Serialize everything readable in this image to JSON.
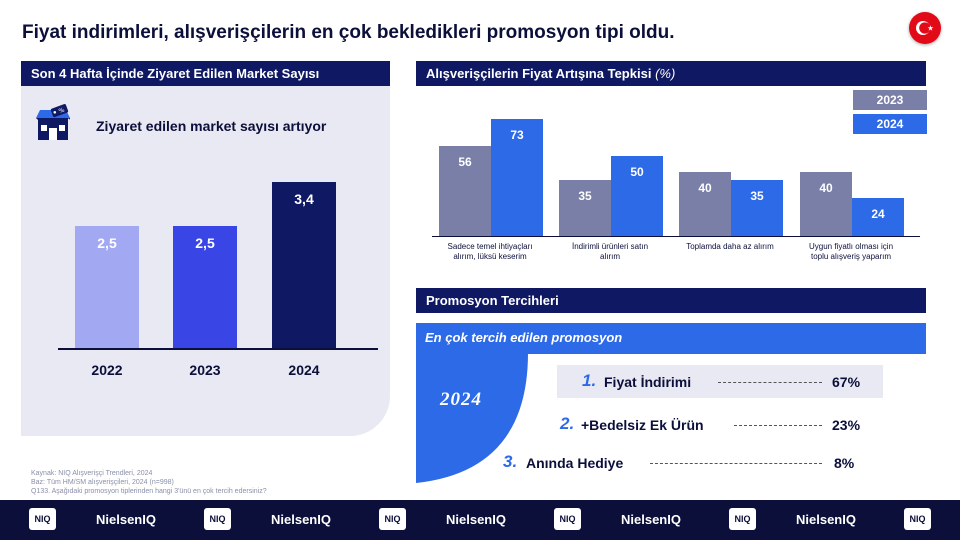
{
  "title": "Fiyat indirimleri,  alışverişçilerin  en çok bekledikleri  promosyon tipi oldu.",
  "flag": {
    "country": "Turkey",
    "icon": "turkey-flag-icon",
    "color": "#e30a17"
  },
  "left_panel": {
    "header": "Son 4 Hafta İçinde Ziyaret Edilen Market Sayısı",
    "icon": "store-icon",
    "subtitle": "Ziyaret edilen market sayısı artıyor"
  },
  "right_panel": {
    "header": "Alışverişçilerin Fiyat Artışına  Tepkisi",
    "header_unit": "(%)",
    "legend": [
      "2023",
      "2024"
    ]
  },
  "promo": {
    "header": "Promosyon  Tercihleri",
    "subheader": "En çok tercih edilen promosyon",
    "year": "2024",
    "items": [
      {
        "rank": "1.",
        "name": "Fiyat İndirimi",
        "pct": "67%"
      },
      {
        "rank": "2.",
        "name": "+Bedelsiz Ek Ürün",
        "pct": "23%"
      },
      {
        "rank": "3.",
        "name": "Anında Hediye",
        "pct": "8%"
      }
    ]
  },
  "source_lines": [
    "Kaynak:  NIQ Alışverişçi Trendleri, 2024",
    "Baz: Tüm HM/SM alışverişçileri, 2024 (n=998)",
    "Q133. Aşağıdaki promosyon tiplerinden hangi 3'ünü en çok tercih edersiniz?"
  ],
  "footer": {
    "badge": "NIQ",
    "wordmark": "NielsenIQ"
  },
  "colors": {
    "navy": "#0e1863",
    "blue": "#2d6ae8",
    "grey_blue": "#7a7fa8",
    "light_bar": "#a3a8f3",
    "mid_bar": "#3a45e6",
    "dark_bar": "#0e1863",
    "panel_bg": "#e8e9f2"
  },
  "chart_data": [
    {
      "type": "bar",
      "title": "Son 4 Hafta İçinde Ziyaret Edilen Market Sayısı",
      "categories": [
        "2022",
        "2023",
        "2024"
      ],
      "values": [
        2.5,
        2.5,
        3.4
      ],
      "value_labels": [
        "2,5",
        "2,5",
        "3,4"
      ],
      "colors": [
        "#a3a8f3",
        "#3a45e6",
        "#0e1863"
      ],
      "ylim": [
        0,
        4.3
      ]
    },
    {
      "type": "bar",
      "title": "Alışverişçilerin Fiyat Artışına  Tepkisi (%)",
      "categories": [
        [
          "Sadece temel ihtiyaçları",
          "alırım, lüksü keserim"
        ],
        [
          "İndirimli ürünleri satın",
          "alırım"
        ],
        [
          "Toplamda daha az alırım"
        ],
        [
          "Uygun fiyatlı olması için",
          "toplu alışveriş yaparım"
        ]
      ],
      "series": [
        {
          "name": "2023",
          "values": [
            56,
            35,
            40,
            40
          ],
          "color": "#7a7fa8"
        },
        {
          "name": "2024",
          "values": [
            73,
            50,
            35,
            24
          ],
          "color": "#2d6ae8"
        }
      ],
      "ylim": [
        0,
        80
      ],
      "legend": "top-right"
    }
  ]
}
